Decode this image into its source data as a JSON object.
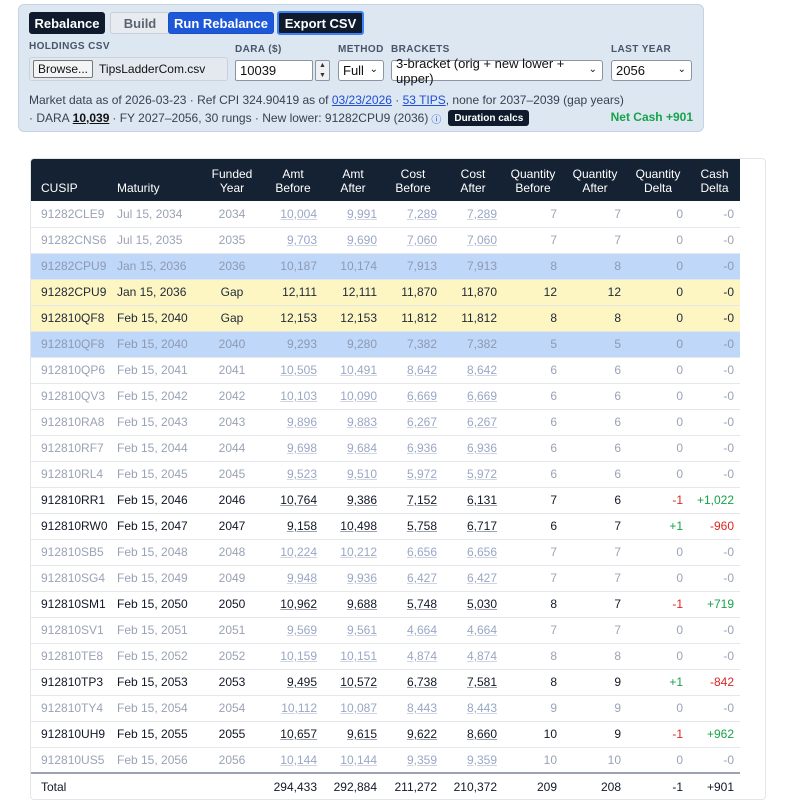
{
  "toolbar": {
    "rebalance_label": "Rebalance",
    "build_label": "Build",
    "run_label": "Run Rebalance",
    "export_label": "Export CSV"
  },
  "controls": {
    "holdings_label": "HOLDINGS CSV",
    "browse_label": "Browse...",
    "file_name": "TipsLadderCom.csv",
    "dara_label": "DARA ($)",
    "dara_value": "10039",
    "method_label": "METHOD",
    "method_value": "Full",
    "brackets_label": "BRACKETS",
    "brackets_value": "3-bracket (orig + new lower + upper)",
    "lastyear_label": "LAST YEAR",
    "lastyear_value": "2056"
  },
  "info": {
    "line1_prefix": "Market data as of 2026-03-23 · Ref CPI 324.90419 as of",
    "line1_date_link": "03/23/2026",
    "line1_sep": "·",
    "line1_tips_link": "53 TIPS",
    "line1_suffix": ", none for 2037–2039 (gap years)",
    "line2_prefix": "· DARA",
    "line2_dara": "10,039",
    "line2_suffix": "· FY 2027–2056, 30 rungs · New lower: 91282CPU9 (2036)",
    "info_icon": "ⓘ",
    "duration_button": "Duration calcs",
    "net_cash": "Net Cash +901"
  },
  "table": {
    "headers": {
      "cusip": "CUSIP",
      "maturity": "Maturity",
      "funded_year": "Funded Year",
      "amt_before": "Amt Before",
      "amt_after": "Amt After",
      "cost_before": "Cost Before",
      "cost_after": "Cost After",
      "qty_before": "Quantity Before",
      "qty_after": "Quantity After",
      "qty_delta": "Quantity Delta",
      "cash_delta": "Cash Delta"
    },
    "rows": [
      {
        "style": "dim",
        "cusip": "91282CLE9",
        "maturity": "Jul 15, 2034",
        "fy": "2034",
        "amt_before": "10,004",
        "amt_after": "9,991",
        "cost_before": "7,289",
        "cost_after": "7,289",
        "qb": "7",
        "qa": "7",
        "qd": "0",
        "cd": "-0"
      },
      {
        "style": "dim",
        "cusip": "91282CNS6",
        "maturity": "Jul 15, 2035",
        "fy": "2035",
        "amt_before": "9,703",
        "amt_after": "9,690",
        "cost_before": "7,060",
        "cost_after": "7,060",
        "qb": "7",
        "qa": "7",
        "qd": "0",
        "cd": "-0"
      },
      {
        "style": "blue",
        "cusip": "91282CPU9",
        "maturity": "Jan 15, 2036",
        "fy": "2036",
        "amt_before": "10,187",
        "amt_after": "10,174",
        "cost_before": "7,913",
        "cost_after": "7,913",
        "qb": "8",
        "qa": "8",
        "qd": "0",
        "cd": "-0"
      },
      {
        "style": "gap",
        "cusip": "91282CPU9",
        "maturity": "Jan 15, 2036",
        "fy": "Gap",
        "amt_before": "12,111",
        "amt_after": "12,111",
        "cost_before": "11,870",
        "cost_after": "11,870",
        "qb": "12",
        "qa": "12",
        "qd": "0",
        "cd": "-0"
      },
      {
        "style": "gap",
        "cusip": "912810QF8",
        "maturity": "Feb 15, 2040",
        "fy": "Gap",
        "amt_before": "12,153",
        "amt_after": "12,153",
        "cost_before": "11,812",
        "cost_after": "11,812",
        "qb": "8",
        "qa": "8",
        "qd": "0",
        "cd": "-0"
      },
      {
        "style": "blue",
        "cusip": "912810QF8",
        "maturity": "Feb 15, 2040",
        "fy": "2040",
        "amt_before": "9,293",
        "amt_after": "9,280",
        "cost_before": "7,382",
        "cost_after": "7,382",
        "qb": "5",
        "qa": "5",
        "qd": "0",
        "cd": "-0"
      },
      {
        "style": "dim",
        "cusip": "912810QP6",
        "maturity": "Feb 15, 2041",
        "fy": "2041",
        "amt_before": "10,505",
        "amt_after": "10,491",
        "cost_before": "8,642",
        "cost_after": "8,642",
        "qb": "6",
        "qa": "6",
        "qd": "0",
        "cd": "-0"
      },
      {
        "style": "dim",
        "cusip": "912810QV3",
        "maturity": "Feb 15, 2042",
        "fy": "2042",
        "amt_before": "10,103",
        "amt_after": "10,090",
        "cost_before": "6,669",
        "cost_after": "6,669",
        "qb": "6",
        "qa": "6",
        "qd": "0",
        "cd": "-0"
      },
      {
        "style": "dim",
        "cusip": "912810RA8",
        "maturity": "Feb 15, 2043",
        "fy": "2043",
        "amt_before": "9,896",
        "amt_after": "9,883",
        "cost_before": "6,267",
        "cost_after": "6,267",
        "qb": "6",
        "qa": "6",
        "qd": "0",
        "cd": "-0"
      },
      {
        "style": "dim",
        "cusip": "912810RF7",
        "maturity": "Feb 15, 2044",
        "fy": "2044",
        "amt_before": "9,698",
        "amt_after": "9,684",
        "cost_before": "6,936",
        "cost_after": "6,936",
        "qb": "6",
        "qa": "6",
        "qd": "0",
        "cd": "-0"
      },
      {
        "style": "dim",
        "cusip": "912810RL4",
        "maturity": "Feb 15, 2045",
        "fy": "2045",
        "amt_before": "9,523",
        "amt_after": "9,510",
        "cost_before": "5,972",
        "cost_after": "5,972",
        "qb": "6",
        "qa": "6",
        "qd": "0",
        "cd": "-0"
      },
      {
        "style": "active",
        "cusip": "912810RR1",
        "maturity": "Feb 15, 2046",
        "fy": "2046",
        "amt_before": "10,764",
        "amt_after": "9,386",
        "cost_before": "7,152",
        "cost_after": "6,131",
        "qb": "7",
        "qa": "6",
        "qd": "-1",
        "cd": "+1,022",
        "qd_sign": "neg",
        "cd_sign": "pos"
      },
      {
        "style": "active",
        "cusip": "912810RW0",
        "maturity": "Feb 15, 2047",
        "fy": "2047",
        "amt_before": "9,158",
        "amt_after": "10,498",
        "cost_before": "5,758",
        "cost_after": "6,717",
        "qb": "6",
        "qa": "7",
        "qd": "+1",
        "cd": "-960",
        "qd_sign": "pos",
        "cd_sign": "neg"
      },
      {
        "style": "dim",
        "cusip": "912810SB5",
        "maturity": "Feb 15, 2048",
        "fy": "2048",
        "amt_before": "10,224",
        "amt_after": "10,212",
        "cost_before": "6,656",
        "cost_after": "6,656",
        "qb": "7",
        "qa": "7",
        "qd": "0",
        "cd": "-0"
      },
      {
        "style": "dim",
        "cusip": "912810SG4",
        "maturity": "Feb 15, 2049",
        "fy": "2049",
        "amt_before": "9,948",
        "amt_after": "9,936",
        "cost_before": "6,427",
        "cost_after": "6,427",
        "qb": "7",
        "qa": "7",
        "qd": "0",
        "cd": "-0"
      },
      {
        "style": "active",
        "cusip": "912810SM1",
        "maturity": "Feb 15, 2050",
        "fy": "2050",
        "amt_before": "10,962",
        "amt_after": "9,688",
        "cost_before": "5,748",
        "cost_after": "5,030",
        "qb": "8",
        "qa": "7",
        "qd": "-1",
        "cd": "+719",
        "qd_sign": "neg",
        "cd_sign": "pos"
      },
      {
        "style": "dim",
        "cusip": "912810SV1",
        "maturity": "Feb 15, 2051",
        "fy": "2051",
        "amt_before": "9,569",
        "amt_after": "9,561",
        "cost_before": "4,664",
        "cost_after": "4,664",
        "qb": "7",
        "qa": "7",
        "qd": "0",
        "cd": "-0"
      },
      {
        "style": "dim",
        "cusip": "912810TE8",
        "maturity": "Feb 15, 2052",
        "fy": "2052",
        "amt_before": "10,159",
        "amt_after": "10,151",
        "cost_before": "4,874",
        "cost_after": "4,874",
        "qb": "8",
        "qa": "8",
        "qd": "0",
        "cd": "-0"
      },
      {
        "style": "active",
        "cusip": "912810TP3",
        "maturity": "Feb 15, 2053",
        "fy": "2053",
        "amt_before": "9,495",
        "amt_after": "10,572",
        "cost_before": "6,738",
        "cost_after": "7,581",
        "qb": "8",
        "qa": "9",
        "qd": "+1",
        "cd": "-842",
        "qd_sign": "pos",
        "cd_sign": "neg"
      },
      {
        "style": "dim",
        "cusip": "912810TY4",
        "maturity": "Feb 15, 2054",
        "fy": "2054",
        "amt_before": "10,112",
        "amt_after": "10,087",
        "cost_before": "8,443",
        "cost_after": "8,443",
        "qb": "9",
        "qa": "9",
        "qd": "0",
        "cd": "-0"
      },
      {
        "style": "active",
        "cusip": "912810UH9",
        "maturity": "Feb 15, 2055",
        "fy": "2055",
        "amt_before": "10,657",
        "amt_after": "9,615",
        "cost_before": "9,622",
        "cost_after": "8,660",
        "qb": "10",
        "qa": "9",
        "qd": "-1",
        "cd": "+962",
        "qd_sign": "neg",
        "cd_sign": "pos"
      },
      {
        "style": "dim",
        "cusip": "912810US5",
        "maturity": "Feb 15, 2056",
        "fy": "2056",
        "amt_before": "10,144",
        "amt_after": "10,144",
        "cost_before": "9,359",
        "cost_after": "9,359",
        "qb": "10",
        "qa": "10",
        "qd": "0",
        "cd": "-0"
      }
    ],
    "total": {
      "label": "Total",
      "amt_before": "294,433",
      "amt_after": "292,884",
      "cost_before": "211,272",
      "cost_after": "210,372",
      "qb": "209",
      "qa": "208",
      "qd": "-1",
      "cd": "+901"
    }
  }
}
